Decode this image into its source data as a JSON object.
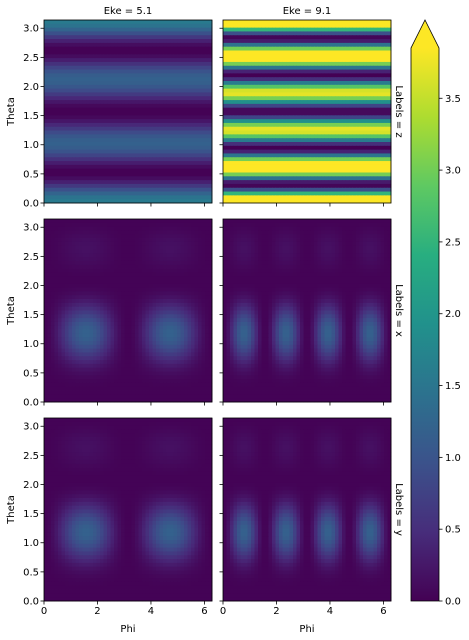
{
  "chart_data": {
    "type": "heatmap",
    "col_titles": [
      "Eke = 5.1",
      "Eke = 9.1"
    ],
    "row_titles": [
      "Labels = z",
      "Labels = x",
      "Labels = y"
    ],
    "xlabel": "Phi",
    "ylabel": "Theta",
    "xlim": [
      0,
      6.283
    ],
    "ylim": [
      0,
      3.1416
    ],
    "xticks": [
      0,
      2,
      4,
      6
    ],
    "xtick_labels": [
      "0",
      "2",
      "4",
      "6"
    ],
    "yticks": [
      0,
      0.5,
      1.0,
      1.5,
      2.0,
      2.5,
      3.0
    ],
    "ytick_labels": [
      "0.0",
      "0.5",
      "1.0",
      "1.5",
      "2.0",
      "2.5",
      "3.0"
    ],
    "colormap": "viridis",
    "colorbar": {
      "vmin": 0,
      "vmax": 3.85,
      "ticks": [
        0,
        0.5,
        1.0,
        1.5,
        2.0,
        2.5,
        3.0,
        3.5
      ],
      "tick_labels": [
        "0.0",
        "0.5",
        "1.0",
        "1.5",
        "2.0",
        "2.5",
        "3.0",
        "3.5"
      ],
      "extend": "max"
    },
    "panels": [
      {
        "row": "Labels = z",
        "col": "Eke = 5.1",
        "pattern": "theta_bands",
        "amplitude": 1.6,
        "bands": 3
      },
      {
        "row": "Labels = z",
        "col": "Eke = 9.1",
        "pattern": "theta_bands",
        "amplitude": 5.5,
        "bands": 5
      },
      {
        "row": "Labels = x",
        "col": "Eke = 5.1",
        "pattern": "blobs",
        "amplitude": 1.45,
        "theta_lobes": 3,
        "phi_lobes": 2
      },
      {
        "row": "Labels = x",
        "col": "Eke = 9.1",
        "pattern": "blobs",
        "amplitude": 1.45,
        "theta_lobes": 3,
        "phi_lobes": 4
      },
      {
        "row": "Labels = y",
        "col": "Eke = 5.1",
        "pattern": "blobs",
        "amplitude": 1.45,
        "theta_lobes": 3,
        "phi_lobes": 2
      },
      {
        "row": "Labels = y",
        "col": "Eke = 9.1",
        "pattern": "blobs",
        "amplitude": 1.45,
        "theta_lobes": 3,
        "phi_lobes": 4
      }
    ]
  }
}
